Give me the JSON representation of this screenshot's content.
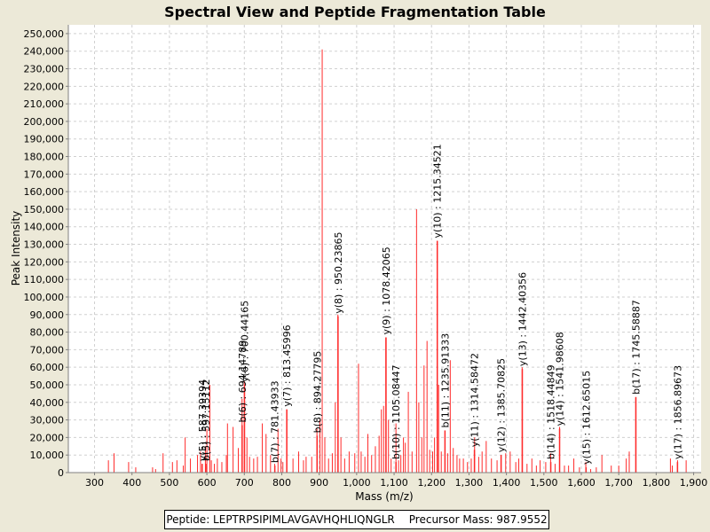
{
  "chart_data": {
    "type": "bar",
    "title": "Spectral View and Peptide Fragmentation Table",
    "xlabel": "Mass (m/z)",
    "ylabel": "Peak Intensity",
    "xlim": [
      230,
      1920
    ],
    "ylim": [
      0,
      255000
    ],
    "xticks": [
      "300",
      "400",
      "500",
      "600",
      "700",
      "800",
      "900",
      "1,000",
      "1,100",
      "1,200",
      "1,300",
      "1,400",
      "1,500",
      "1,600",
      "1,700",
      "1,800",
      "1,900"
    ],
    "yticks": [
      "0",
      "10,000",
      "20,000",
      "30,000",
      "40,000",
      "50,000",
      "60,000",
      "70,000",
      "80,000",
      "90,000",
      "100,000",
      "110,000",
      "120,000",
      "130,000",
      "140,000",
      "150,000",
      "160,000",
      "170,000",
      "180,000",
      "190,000",
      "200,000",
      "210,000",
      "220,000",
      "230,000",
      "240,000",
      "250,000"
    ],
    "grid": true,
    "bar_color": "#ff2a2a",
    "peaks": [
      [
        337,
        7000
      ],
      [
        352,
        11000
      ],
      [
        391,
        6000
      ],
      [
        410,
        3000
      ],
      [
        455,
        3000
      ],
      [
        463,
        2000
      ],
      [
        483,
        11000
      ],
      [
        508,
        6000
      ],
      [
        520,
        7000
      ],
      [
        537,
        4000
      ],
      [
        542,
        20000
      ],
      [
        556,
        8000
      ],
      [
        575,
        10000
      ],
      [
        583,
        12000
      ],
      [
        596,
        15000
      ],
      [
        600,
        25000
      ],
      [
        608,
        50000
      ],
      [
        612,
        7000
      ],
      [
        620,
        5000
      ],
      [
        628,
        8000
      ],
      [
        640,
        6000
      ],
      [
        652,
        10000
      ],
      [
        655,
        28000
      ],
      [
        670,
        26000
      ],
      [
        684,
        14000
      ],
      [
        694,
        42000
      ],
      [
        700,
        52000
      ],
      [
        707,
        20000
      ],
      [
        714,
        9000
      ],
      [
        725,
        8000
      ],
      [
        735,
        9000
      ],
      [
        748,
        28000
      ],
      [
        758,
        22000
      ],
      [
        770,
        10000
      ],
      [
        781,
        5000
      ],
      [
        790,
        25000
      ],
      [
        798,
        8000
      ],
      [
        803,
        6000
      ],
      [
        813,
        36000
      ],
      [
        830,
        8000
      ],
      [
        845,
        12000
      ],
      [
        858,
        7000
      ],
      [
        865,
        9000
      ],
      [
        880,
        9000
      ],
      [
        894,
        25000
      ],
      [
        902,
        30000
      ],
      [
        908,
        241000
      ],
      [
        915,
        20000
      ],
      [
        925,
        8000
      ],
      [
        935,
        11000
      ],
      [
        943,
        40000
      ],
      [
        950,
        90000
      ],
      [
        958,
        20000
      ],
      [
        968,
        8000
      ],
      [
        980,
        12000
      ],
      [
        995,
        11000
      ],
      [
        1005,
        62000
      ],
      [
        1012,
        12000
      ],
      [
        1022,
        9000
      ],
      [
        1030,
        22000
      ],
      [
        1040,
        10000
      ],
      [
        1050,
        15000
      ],
      [
        1060,
        21000
      ],
      [
        1066,
        36000
      ],
      [
        1072,
        38000
      ],
      [
        1078,
        77000
      ],
      [
        1085,
        30000
      ],
      [
        1092,
        8000
      ],
      [
        1105,
        28000
      ],
      [
        1112,
        7000
      ],
      [
        1118,
        10000
      ],
      [
        1125,
        20000
      ],
      [
        1130,
        17000
      ],
      [
        1138,
        46000
      ],
      [
        1148,
        12000
      ],
      [
        1160,
        150000
      ],
      [
        1166,
        40000
      ],
      [
        1174,
        20000
      ],
      [
        1180,
        61000
      ],
      [
        1188,
        75000
      ],
      [
        1195,
        13000
      ],
      [
        1203,
        12000
      ],
      [
        1208,
        20000
      ],
      [
        1215,
        132000
      ],
      [
        1219,
        50000
      ],
      [
        1226,
        12000
      ],
      [
        1236,
        24000
      ],
      [
        1243,
        11000
      ],
      [
        1250,
        64000
      ],
      [
        1258,
        14000
      ],
      [
        1268,
        10000
      ],
      [
        1275,
        8000
      ],
      [
        1285,
        8000
      ],
      [
        1296,
        6000
      ],
      [
        1306,
        8000
      ],
      [
        1315,
        20000
      ],
      [
        1326,
        9000
      ],
      [
        1335,
        12000
      ],
      [
        1346,
        18000
      ],
      [
        1360,
        8000
      ],
      [
        1375,
        7000
      ],
      [
        1386,
        10000
      ],
      [
        1398,
        11000
      ],
      [
        1410,
        12000
      ],
      [
        1425,
        6000
      ],
      [
        1433,
        8000
      ],
      [
        1442,
        60000
      ],
      [
        1455,
        5000
      ],
      [
        1468,
        8000
      ],
      [
        1480,
        4000
      ],
      [
        1490,
        7000
      ],
      [
        1505,
        6000
      ],
      [
        1518,
        11000
      ],
      [
        1530,
        5000
      ],
      [
        1542,
        26000
      ],
      [
        1555,
        4000
      ],
      [
        1566,
        4000
      ],
      [
        1580,
        8000
      ],
      [
        1595,
        3000
      ],
      [
        1612,
        6000
      ],
      [
        1625,
        2000
      ],
      [
        1640,
        3000
      ],
      [
        1655,
        10000
      ],
      [
        1680,
        4000
      ],
      [
        1700,
        4000
      ],
      [
        1720,
        8000
      ],
      [
        1728,
        12000
      ],
      [
        1746,
        43000
      ],
      [
        1838,
        8000
      ],
      [
        1843,
        4000
      ],
      [
        1857,
        7000
      ],
      [
        1880,
        7000
      ]
    ],
    "annotations": [
      {
        "x": 587.39394,
        "y": 5000,
        "text": "y(5) : 587.39394"
      },
      {
        "x": 597.15112,
        "y": 5000,
        "text": "b(5) : 597.15112"
      },
      {
        "x": 694.14789,
        "y": 27000,
        "text": "b(6) : 694.14789"
      },
      {
        "x": 700.44165,
        "y": 50000,
        "text": "y(6) : 700.44165"
      },
      {
        "x": 781.43933,
        "y": 4000,
        "text": "b(7) : 781.43933"
      },
      {
        "x": 813.45996,
        "y": 36000,
        "text": "y(7) : 813.45996"
      },
      {
        "x": 894.27795,
        "y": 21000,
        "text": "b(8) : 894.27795"
      },
      {
        "x": 950.23865,
        "y": 89000,
        "text": "y(8) : 950.23865"
      },
      {
        "x": 1078.42065,
        "y": 77000,
        "text": "y(9) : 1078.42065"
      },
      {
        "x": 1105.08447,
        "y": 6000,
        "text": "b(10) : 1105.08447"
      },
      {
        "x": 1215.34521,
        "y": 132000,
        "text": "y(10) : 1215.34521"
      },
      {
        "x": 1235.91333,
        "y": 24000,
        "text": "b(11) : 1235.91333"
      },
      {
        "x": 1314.58472,
        "y": 13000,
        "text": "y(11) : 1314.58472"
      },
      {
        "x": 1385.70825,
        "y": 10000,
        "text": "y(12) : 1385.70825"
      },
      {
        "x": 1442.40356,
        "y": 59000,
        "text": "y(13) : 1442.40356"
      },
      {
        "x": 1518.44849,
        "y": 6000,
        "text": "b(14) : 1518.44849"
      },
      {
        "x": 1541.98608,
        "y": 25000,
        "text": "y(14) : 1541.98608"
      },
      {
        "x": 1612.65015,
        "y": 3000,
        "text": "y(15) : 1612.65015"
      },
      {
        "x": 1745.58887,
        "y": 43000,
        "text": "b(17) : 1745.58887"
      },
      {
        "x": 1856.89673,
        "y": 6000,
        "text": "y(17) : 1856.89673"
      }
    ]
  },
  "legend": {
    "peptide": "Peptide: LEPTRPSIPIMLAVGAVHQHLIQNGLR",
    "precursor": "Precursor Mass: 987.9552"
  }
}
